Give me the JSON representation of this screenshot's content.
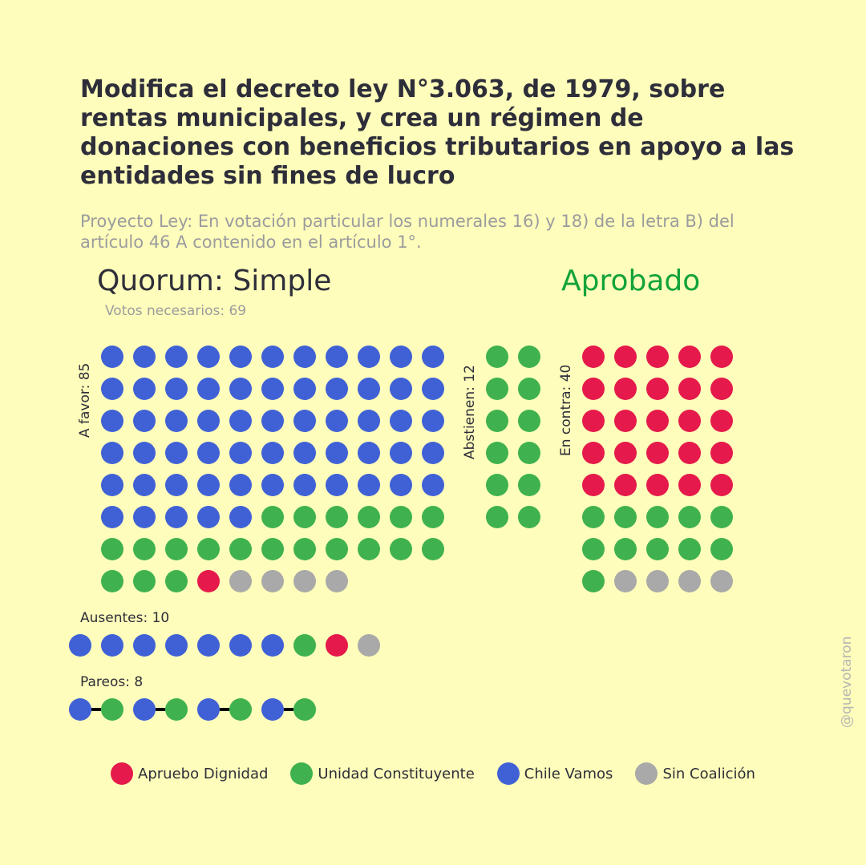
{
  "title": "Modifica el decreto ley N°3.063, de 1979, sobre rentas municipales, y crea un régimen de donaciones con beneficios tributarios en apoyo a las entidades sin fines de lucro",
  "subtitle": "Proyecto Ley: En votación particular los numerales 16) y 18) de la letra B) del artículo 46 A contenido en el artículo 1°.",
  "quorum": "Quorum: Simple",
  "votes_needed": "Votos necesarios: 69",
  "result": "Aprobado",
  "credit": "@quevotaron",
  "colors": {
    "apruebo_dignidad": "#e5194b",
    "unidad_constituyente": "#3fb24f",
    "chile_vamos": "#4061d6",
    "sin_coalicion": "#a9a9a9",
    "pair_line": "#000000"
  },
  "chart_data": {
    "type": "waffle",
    "legend": [
      {
        "name": "Apruebo Dignidad",
        "color": "#e5194b"
      },
      {
        "name": "Unidad Constituyente",
        "color": "#3fb24f"
      },
      {
        "name": "Chile Vamos",
        "color": "#4061d6"
      },
      {
        "name": "Sin Coalición",
        "color": "#a9a9a9"
      }
    ],
    "groups": {
      "a_favor": {
        "label": "A favor: 85",
        "breakdown": {
          "Chile Vamos": 60,
          "Unidad Constituyente": 20,
          "Apruebo Dignidad": 1,
          "Sin Coalición": 4
        }
      },
      "abstienen": {
        "label": "Abstienen: 12",
        "breakdown": {
          "Unidad Constituyente": 12
        }
      },
      "en_contra": {
        "label": "En contra: 40",
        "breakdown": {
          "Apruebo Dignidad": 25,
          "Unidad Constituyente": 11,
          "Sin Coalición": 4
        }
      },
      "ausentes": {
        "label": "Ausentes: 10",
        "breakdown": {
          "Chile Vamos": 7,
          "Apruebo Dignidad": 1,
          "Unidad Constituyente": 1,
          "Sin Coalición": 1
        }
      },
      "pareos": {
        "label": "Pareos: 8",
        "pairs": [
          [
            "Chile Vamos",
            "Unidad Constituyente"
          ],
          [
            "Chile Vamos",
            "Unidad Constituyente"
          ],
          [
            "Chile Vamos",
            "Unidad Constituyente"
          ],
          [
            "Chile Vamos",
            "Unidad Constituyente"
          ]
        ]
      }
    }
  }
}
